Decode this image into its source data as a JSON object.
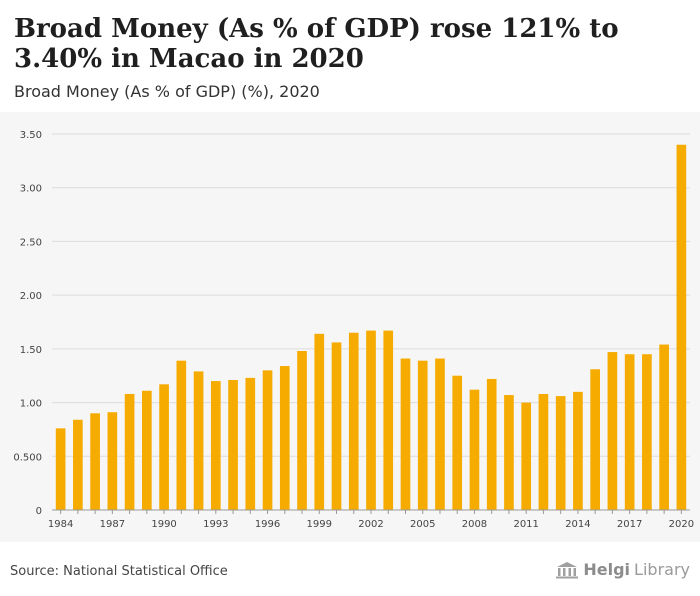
{
  "header": {
    "title": "Broad Money (As % of GDP) rose 121% to 3.40% in Macao in 2020",
    "subtitle": "Broad Money (As % of GDP) (%), 2020"
  },
  "footer": {
    "source": "Source: National Statistical Office",
    "logo_word_1": "Helgi",
    "logo_word_2": "Library"
  },
  "colors": {
    "bar": "#f5ab00",
    "grid": "#dcdcdc",
    "background": "#f6f6f6"
  },
  "chart_data": {
    "type": "bar",
    "categories": [
      1984,
      1985,
      1986,
      1987,
      1988,
      1989,
      1990,
      1991,
      1992,
      1993,
      1994,
      1995,
      1996,
      1997,
      1998,
      1999,
      2000,
      2001,
      2002,
      2003,
      2004,
      2005,
      2006,
      2007,
      2008,
      2009,
      2010,
      2011,
      2012,
      2013,
      2014,
      2015,
      2016,
      2017,
      2018,
      2019,
      2020
    ],
    "values": [
      0.76,
      0.84,
      0.9,
      0.91,
      1.08,
      1.11,
      1.17,
      1.39,
      1.29,
      1.2,
      1.21,
      1.23,
      1.3,
      1.34,
      1.48,
      1.64,
      1.56,
      1.65,
      1.67,
      1.67,
      1.41,
      1.39,
      1.41,
      1.25,
      1.12,
      1.22,
      1.07,
      1.0,
      1.08,
      1.06,
      1.1,
      1.31,
      1.47,
      1.45,
      1.45,
      1.54,
      3.4
    ],
    "x_tick_labels": [
      "1984",
      "1987",
      "1990",
      "1993",
      "1996",
      "1999",
      "2002",
      "2005",
      "2008",
      "2011",
      "2014",
      "2017",
      "2020"
    ],
    "y_ticks": [
      0,
      0.5,
      1,
      1.5,
      2,
      2.5,
      3,
      3.5
    ],
    "y_tick_labels": [
      "0",
      "0.500",
      "1.00",
      "1.50",
      "2.00",
      "2.50",
      "3.00",
      "3.50"
    ],
    "ylim": [
      0,
      3.5
    ],
    "grid": true,
    "legend": "none"
  }
}
